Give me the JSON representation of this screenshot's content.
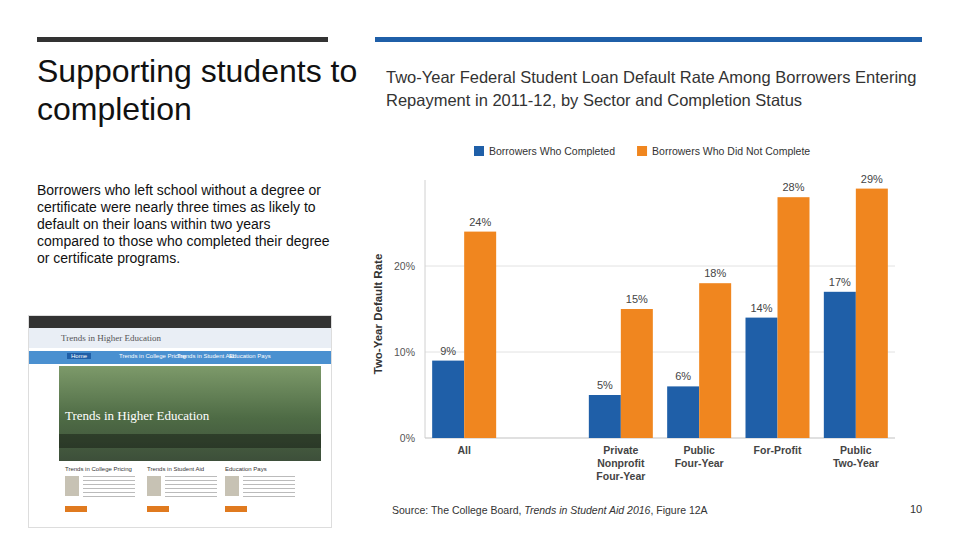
{
  "slide": {
    "title": "Supporting students to completion",
    "text": "Borrowers who left school without a degree or certificate were nearly three times as likely to default on their loans within two years compared to those who completed their degree or certificate programs.",
    "source": {
      "prefix": "Source: The College Board, ",
      "italic": "Trends in Student Aid 2016",
      "suffix": ", Figure 12A"
    },
    "page": "10"
  },
  "screenshot": {
    "header": "Trends in Higher Education",
    "nav": [
      "Home",
      "Trends in College Pricing",
      "Trends in Student Aid",
      "Education Pays"
    ],
    "banner": "Trends in Higher Education",
    "columns": [
      "Trends in College Pricing",
      "Trends in Student Aid",
      "Education Pays"
    ]
  },
  "chart_data": {
    "type": "bar",
    "title": "Two-Year Federal Student Loan Default Rate Among Borrowers Entering Repayment in 2011-12, by Sector and Completion Status",
    "y_label": "Two-Year Default Rate",
    "categories": [
      "All",
      null,
      "Private Nonprofit Four-Year",
      "Public Four-Year",
      "For-Profit",
      "Public Two-Year"
    ],
    "series": [
      {
        "name": "Borrowers Who Completed",
        "color": "#1f5fa8",
        "values": [
          9,
          null,
          5,
          6,
          14,
          17
        ],
        "value_labels": [
          "9%",
          null,
          "5%",
          "6%",
          "14%",
          "17%"
        ]
      },
      {
        "name": "Borrowers Who Did Not Complete",
        "color": "#f0861f",
        "values": [
          24,
          null,
          15,
          18,
          28,
          29
        ],
        "value_labels": [
          "24%",
          null,
          "15%",
          "18%",
          "28%",
          "29%"
        ]
      }
    ],
    "ylim": [
      0,
      30
    ],
    "yticks": [
      {
        "value": 0,
        "label": "0%"
      },
      {
        "value": 10,
        "label": "10%"
      },
      {
        "value": 20,
        "label": "20%"
      }
    ],
    "grid": true,
    "legend": "top",
    "data_labels": true
  }
}
